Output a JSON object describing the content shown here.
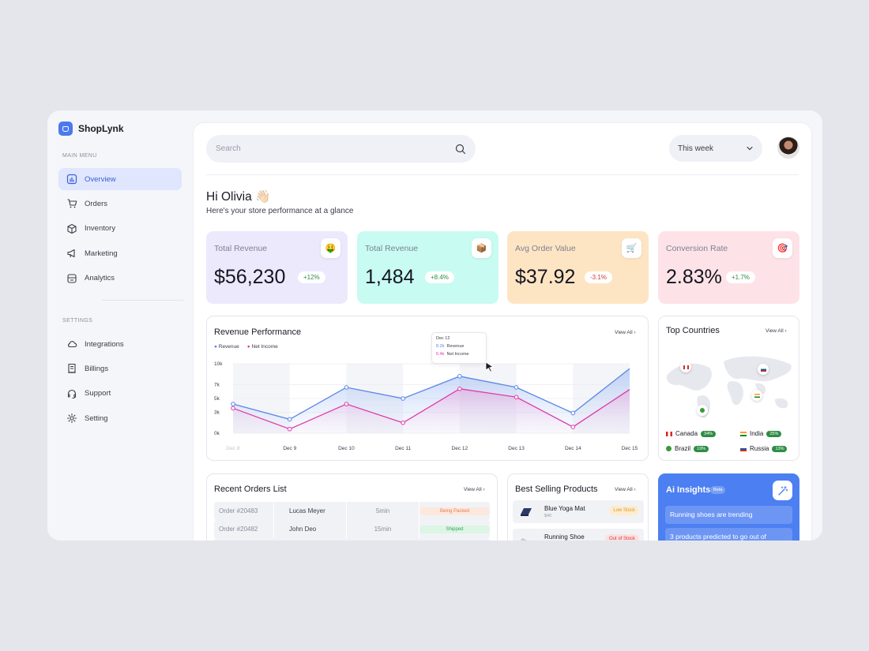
{
  "app": {
    "name": "ShopLynk"
  },
  "sidebar": {
    "main_menu_label": "MAIN MENU",
    "main_items": [
      {
        "label": "Overview",
        "icon": "chart-icon",
        "active": true
      },
      {
        "label": "Orders",
        "icon": "cart-icon"
      },
      {
        "label": "Inventory",
        "icon": "box-icon"
      },
      {
        "label": "Marketing",
        "icon": "megaphone-icon"
      },
      {
        "label": "Analytics",
        "icon": "analytics-icon"
      }
    ],
    "settings_label": "SETTINGS",
    "settings_items": [
      {
        "label": "Integrations",
        "icon": "cloud-icon"
      },
      {
        "label": "Billings",
        "icon": "receipt-icon"
      },
      {
        "label": "Support",
        "icon": "headset-icon"
      },
      {
        "label": "Setting",
        "icon": "gear-icon"
      }
    ]
  },
  "header": {
    "search_placeholder": "Search",
    "period": "This week"
  },
  "greeting": {
    "title": "Hi Olivia 👋🏻",
    "subtitle": "Here's your store performance at a glance"
  },
  "kpis": [
    {
      "label": "Total Revenue",
      "value": "$56,230",
      "change": "+12%",
      "icon": "🤑",
      "bg": "#ece9fd",
      "change_color": "#2f8d45"
    },
    {
      "label": "Total Revenue",
      "value": "1,484",
      "change": "+8.4%",
      "icon": "📦",
      "bg": "#c8fbf1",
      "change_color": "#2f8d45"
    },
    {
      "label": "Avg Order Value",
      "value": "$37.92",
      "change": "-3.1%",
      "icon": "🛒",
      "bg": "#fde5c4",
      "change_color": "#d23b3b"
    },
    {
      "label": "Conversion Rate",
      "value": "2.83%",
      "change": "+1.7%",
      "icon": "🎯",
      "bg": "#fde3e7",
      "change_color": "#2f8d45"
    }
  ],
  "revenue_chart": {
    "title": "Revenue Performance",
    "view_all": "View All",
    "legend": {
      "revenue": "Revenue",
      "net_income": "Net Income"
    },
    "tooltip": {
      "date": "Dec 12",
      "revenue_value": "8.2k",
      "revenue_label": "Revenue",
      "net_value": "6.4k",
      "net_label": "Net Income"
    },
    "colors": {
      "revenue": "#5b86e8",
      "net_income": "#e03aa8"
    }
  },
  "chart_data": {
    "type": "line",
    "x": [
      "Dec 8",
      "Dec 9",
      "Dec 10",
      "Dec 11",
      "Dec 12",
      "Dec 13",
      "Dec 14",
      "Dec 15"
    ],
    "y_ticks": [
      "0k",
      "3k",
      "5k",
      "7k",
      "10k"
    ],
    "ylim": [
      0,
      10
    ],
    "series": [
      {
        "name": "Revenue",
        "values": [
          4.2,
          2.0,
          6.6,
          5.0,
          8.2,
          6.6,
          2.9,
          9.3
        ]
      },
      {
        "name": "Net Income",
        "values": [
          3.6,
          0.6,
          4.2,
          1.5,
          6.4,
          5.2,
          0.9,
          6.3
        ]
      }
    ]
  },
  "countries": {
    "title": "Top Countries",
    "view_all": "View All",
    "items": [
      {
        "name": "Canada",
        "pct": "34%"
      },
      {
        "name": "India",
        "pct": "25%"
      },
      {
        "name": "Brazil",
        "pct": "19%"
      },
      {
        "name": "Russia",
        "pct": "13%"
      }
    ]
  },
  "orders": {
    "title": "Recent Orders List",
    "view_all": "View All",
    "rows": [
      {
        "id": "Order #20483",
        "customer": "Lucas Meyer",
        "time": "5min",
        "status": "Being Packed",
        "status_bg": "#fde8dd",
        "status_color": "#e57b4c"
      },
      {
        "id": "Order #20482",
        "customer": "John Deo",
        "time": "15min",
        "status": "Shipped",
        "status_bg": "#dcf5e4",
        "status_color": "#3aa35c"
      }
    ]
  },
  "products": {
    "title": "Best Selling Products",
    "view_all": "View All",
    "items": [
      {
        "name": "Blue Yoga Mat",
        "price": "$40",
        "badge": "Low Stock",
        "badge_bg": "#fdecd0",
        "badge_color": "#d89a2b"
      },
      {
        "name": "Running Shoe",
        "price": "",
        "badge": "Out of Stock",
        "badge_bg": "#fde1e1",
        "badge_color": "#d23b3b"
      }
    ]
  },
  "ai": {
    "title": "Ai Insights",
    "beta": "Beta",
    "insights": [
      "Running shoes are trending",
      "3 products predicted to go out of"
    ]
  }
}
